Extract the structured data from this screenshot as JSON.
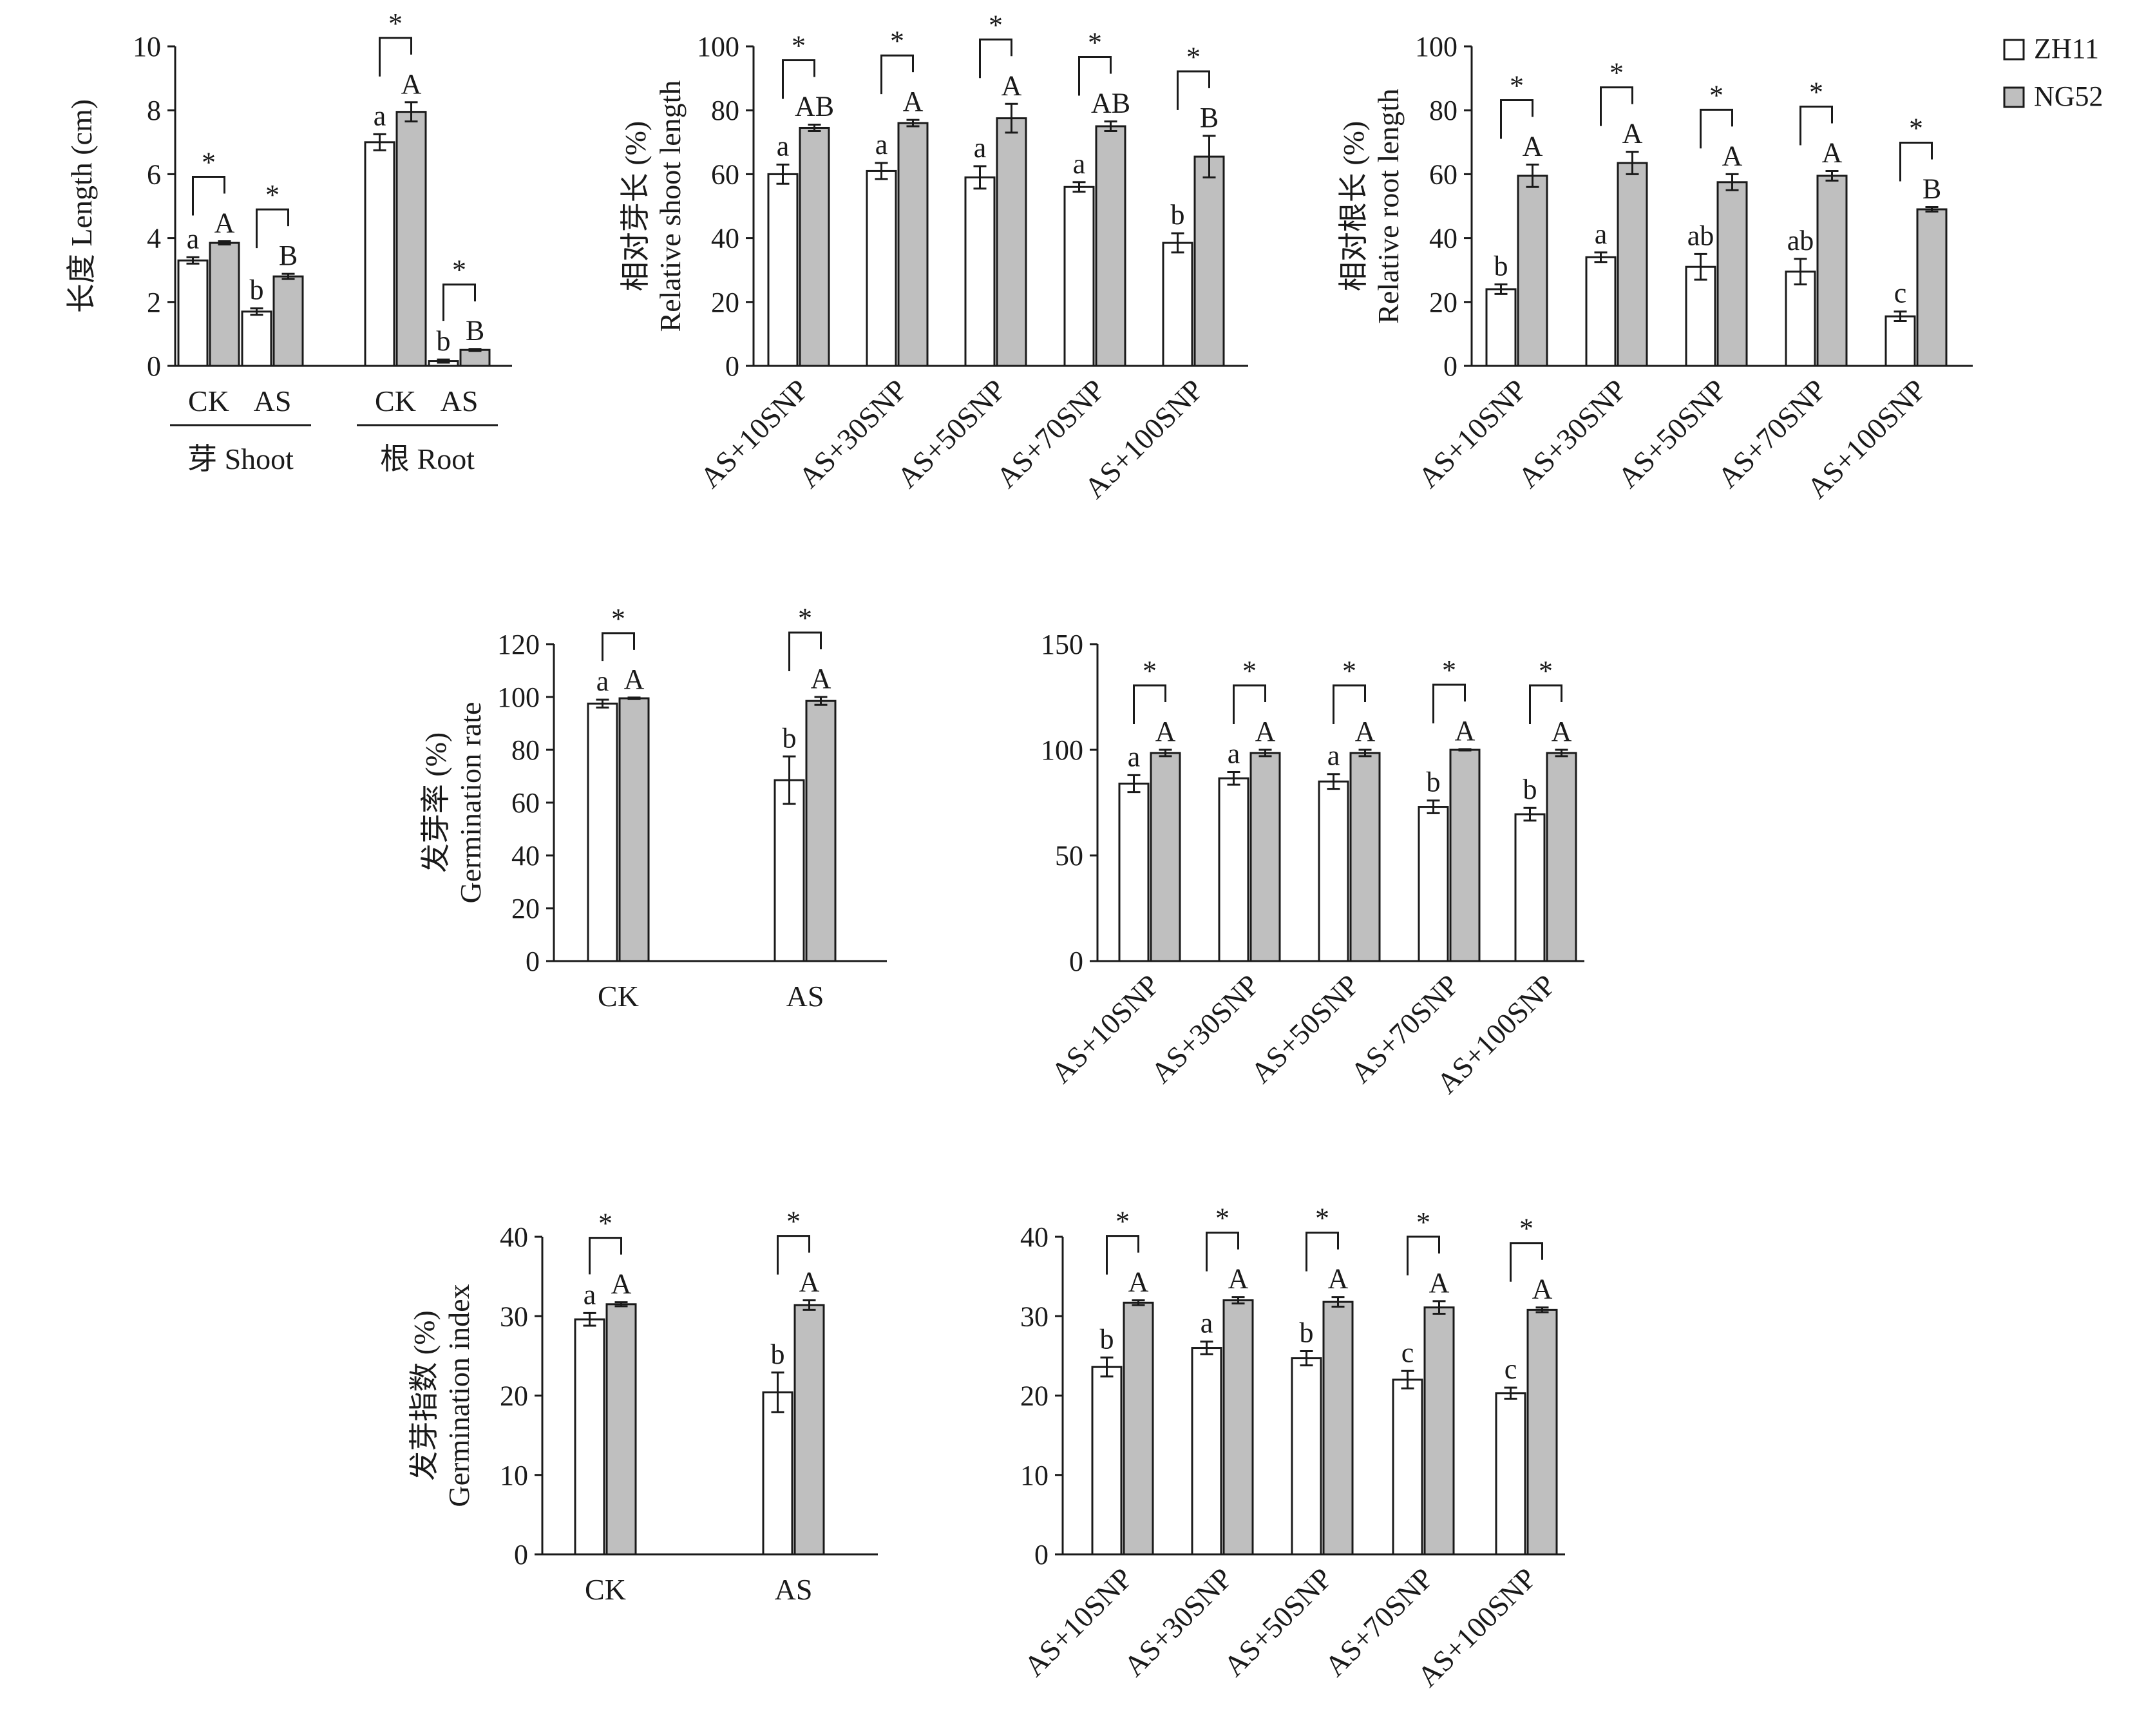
{
  "legend": {
    "items": [
      {
        "label": "ZH11",
        "color": "#ffffff"
      },
      {
        "label": "NG52",
        "color": "#bfbfbf"
      }
    ]
  },
  "colors": {
    "zh11": "#ffffff",
    "ng52": "#bfbfbf",
    "ink": "#1a1a1a"
  },
  "chart_data": [
    {
      "id": "length",
      "type": "bar",
      "ylabel": "长度 Length (cm)",
      "ylim": [
        0,
        10
      ],
      "yticks": [
        "0",
        "2",
        "4",
        "6",
        "8",
        "10"
      ],
      "categories": [
        "CK",
        "AS",
        "CK",
        "AS"
      ],
      "groups": [
        {
          "label": "芽 Shoot",
          "categories": [
            0,
            1
          ]
        },
        {
          "label": "根 Root",
          "categories": [
            2,
            3
          ]
        }
      ],
      "series": [
        {
          "name": "ZH11",
          "values": [
            3.3,
            1.7,
            7.0,
            0.15
          ],
          "errors": [
            0.1,
            0.1,
            0.25,
            0.05
          ],
          "letters": [
            "a",
            "b",
            "a",
            "b"
          ]
        },
        {
          "name": "NG52",
          "values": [
            3.85,
            2.8,
            7.95,
            0.5
          ],
          "errors": [
            0.05,
            0.08,
            0.3,
            0.03
          ],
          "letters": [
            "A",
            "B",
            "A",
            "B"
          ]
        }
      ],
      "sig": [
        "*",
        "*",
        "*",
        "*"
      ]
    },
    {
      "id": "rel-shoot",
      "type": "bar",
      "ylabel": "相对芽长 (%)",
      "ylabel2": "Relative shoot length",
      "ylim": [
        0,
        100
      ],
      "yticks": [
        "0",
        "20",
        "40",
        "60",
        "80",
        "100"
      ],
      "categories": [
        "AS+10SNP",
        "AS+30SNP",
        "AS+50SNP",
        "AS+70SNP",
        "AS+100SNP"
      ],
      "series": [
        {
          "name": "ZH11",
          "values": [
            60,
            61,
            59,
            56,
            38.5
          ],
          "errors": [
            3,
            2.5,
            3.5,
            1.5,
            3
          ],
          "letters": [
            "a",
            "a",
            "a",
            "a",
            "b"
          ]
        },
        {
          "name": "NG52",
          "values": [
            74.5,
            76,
            77.5,
            75,
            65.5
          ],
          "errors": [
            1,
            1,
            4.5,
            1.5,
            6.5
          ],
          "letters": [
            "AB",
            "A",
            "A",
            "AB",
            "B"
          ]
        }
      ],
      "sig": [
        "*",
        "*",
        "*",
        "*",
        "*"
      ]
    },
    {
      "id": "rel-root",
      "type": "bar",
      "ylabel": "相对根长 (%)",
      "ylabel2": "Relative root length",
      "ylim": [
        0,
        100
      ],
      "yticks": [
        "0",
        "20",
        "40",
        "60",
        "80",
        "100"
      ],
      "categories": [
        "AS+10SNP",
        "AS+30SNP",
        "AS+50SNP",
        "AS+70SNP",
        "AS+100SNP"
      ],
      "series": [
        {
          "name": "ZH11",
          "values": [
            24,
            34,
            31,
            29.5,
            15.5
          ],
          "errors": [
            1.5,
            1.5,
            4,
            4,
            1.5
          ],
          "letters": [
            "b",
            "a",
            "ab",
            "ab",
            "c"
          ]
        },
        {
          "name": "NG52",
          "values": [
            59.5,
            63.5,
            57.5,
            59.5,
            49
          ],
          "errors": [
            3.5,
            3.5,
            2.5,
            1.5,
            0.7
          ],
          "letters": [
            "A",
            "A",
            "A",
            "A",
            "B"
          ]
        }
      ],
      "sig": [
        "*",
        "*",
        "*",
        "*",
        "*"
      ]
    },
    {
      "id": "germ-rate",
      "type": "bar",
      "ylabel": "发芽率 (%)",
      "ylabel2": "Germination rate",
      "ylim": [
        0,
        120
      ],
      "yticks": [
        "0",
        "20",
        "40",
        "60",
        "80",
        "100",
        "120"
      ],
      "categories": [
        "CK",
        "AS"
      ],
      "series": [
        {
          "name": "ZH11",
          "values": [
            97.5,
            68.5
          ],
          "errors": [
            1.5,
            9
          ],
          "letters": [
            "a",
            "b"
          ]
        },
        {
          "name": "NG52",
          "values": [
            99.5,
            98.5
          ],
          "errors": [
            0.3,
            1.5
          ],
          "letters": [
            "A",
            "A"
          ]
        }
      ],
      "sig": [
        "*",
        "*"
      ]
    },
    {
      "id": "germ-rate-snp",
      "type": "bar",
      "ylabel": "",
      "ylim": [
        0,
        150
      ],
      "yticks": [
        "0",
        "50",
        "100",
        "150"
      ],
      "categories": [
        "AS+10SNP",
        "AS+30SNP",
        "AS+50SNP",
        "AS+70SNP",
        "AS+100SNP"
      ],
      "series": [
        {
          "name": "ZH11",
          "values": [
            84,
            86.5,
            85,
            73,
            69.5
          ],
          "errors": [
            4,
            3,
            3.5,
            3,
            3
          ],
          "letters": [
            "a",
            "a",
            "a",
            "b",
            "b"
          ]
        },
        {
          "name": "NG52",
          "values": [
            98.5,
            98.5,
            98.5,
            100,
            98.5
          ],
          "errors": [
            1.5,
            1.5,
            1.5,
            0.3,
            1.5
          ],
          "letters": [
            "A",
            "A",
            "A",
            "A",
            "A"
          ]
        }
      ],
      "sig": [
        "*",
        "*",
        "*",
        "*",
        "*"
      ]
    },
    {
      "id": "germ-index",
      "type": "bar",
      "ylabel": "发芽指数 (%)",
      "ylabel2": "Germination index",
      "ylim": [
        0,
        40
      ],
      "yticks": [
        "0",
        "10",
        "20",
        "30",
        "40"
      ],
      "categories": [
        "CK",
        "AS"
      ],
      "series": [
        {
          "name": "ZH11",
          "values": [
            29.6,
            20.4
          ],
          "errors": [
            0.8,
            2.5
          ],
          "letters": [
            "a",
            "b"
          ]
        },
        {
          "name": "NG52",
          "values": [
            31.5,
            31.4
          ],
          "errors": [
            0.25,
            0.6
          ],
          "letters": [
            "A",
            "A"
          ]
        }
      ],
      "sig": [
        "*",
        "*"
      ]
    },
    {
      "id": "germ-index-snp",
      "type": "bar",
      "ylabel": "",
      "ylim": [
        0,
        40
      ],
      "yticks": [
        "0",
        "10",
        "20",
        "30",
        "40"
      ],
      "categories": [
        "AS+10SNP",
        "AS+30SNP",
        "AS+50SNP",
        "AS+70SNP",
        "AS+100SNP"
      ],
      "series": [
        {
          "name": "ZH11",
          "values": [
            23.6,
            26,
            24.7,
            22,
            20.3
          ],
          "errors": [
            1.2,
            0.8,
            0.9,
            1.1,
            0.7
          ],
          "letters": [
            "b",
            "a",
            "b",
            "c",
            "c"
          ]
        },
        {
          "name": "NG52",
          "values": [
            31.7,
            32,
            31.8,
            31.1,
            30.8
          ],
          "errors": [
            0.3,
            0.4,
            0.6,
            0.8,
            0.3
          ],
          "letters": [
            "A",
            "A",
            "A",
            "A",
            "A"
          ]
        }
      ],
      "sig": [
        "*",
        "*",
        "*",
        "*",
        "*"
      ]
    }
  ]
}
